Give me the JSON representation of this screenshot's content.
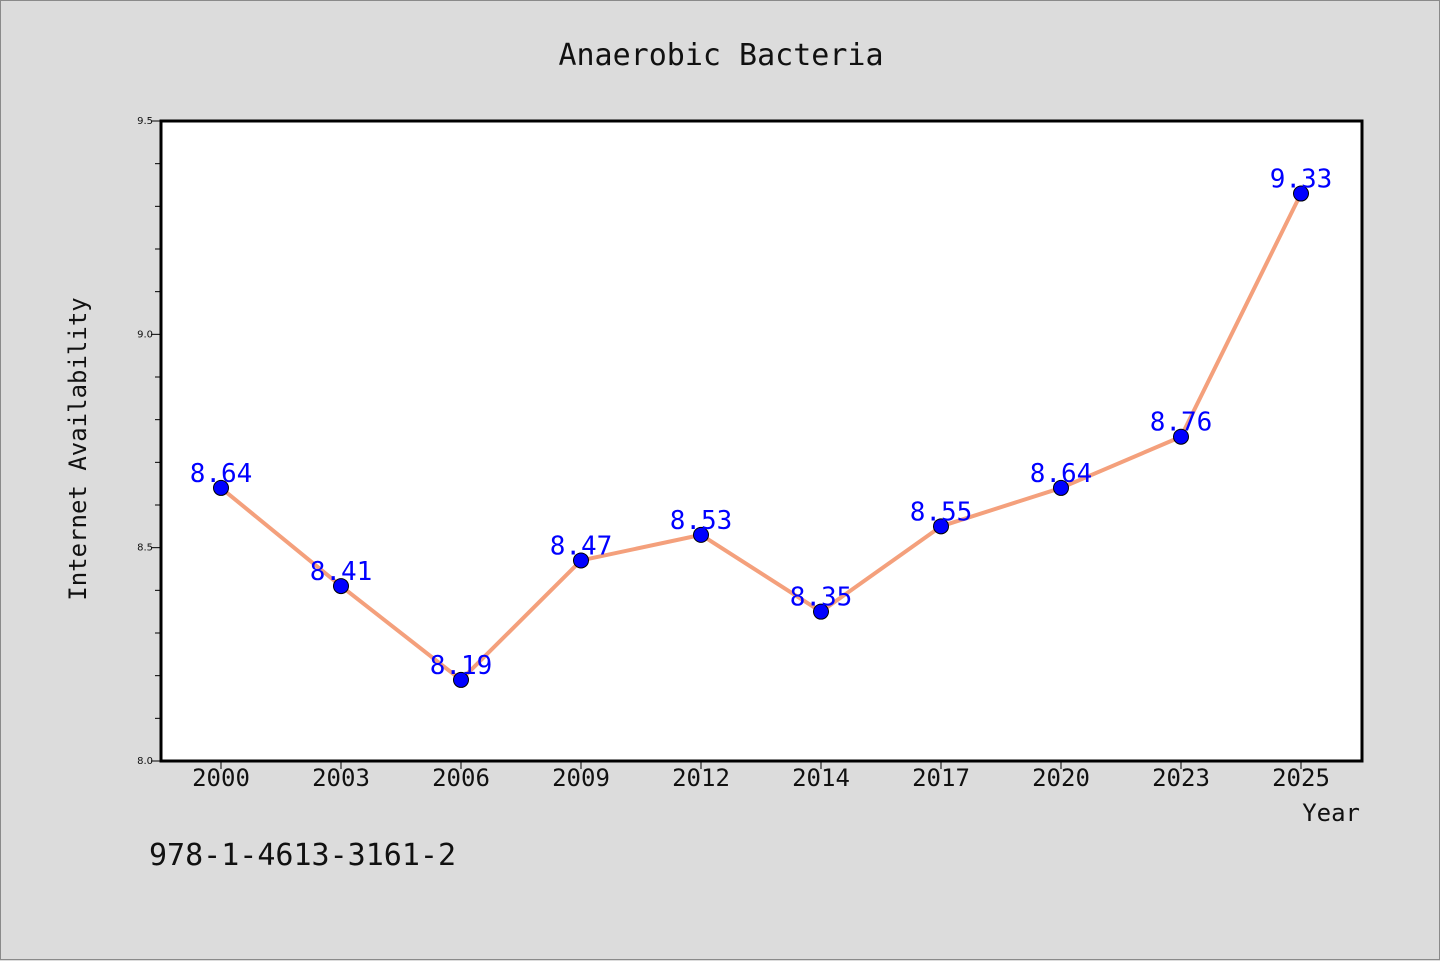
{
  "chart_data": {
    "type": "line",
    "title": "Anaerobic Bacteria",
    "xlabel": "Year",
    "ylabel": "Internet Availability",
    "categories": [
      "2000",
      "2003",
      "2006",
      "2009",
      "2012",
      "2014",
      "2017",
      "2020",
      "2023",
      "2025"
    ],
    "values": [
      8.64,
      8.41,
      8.19,
      8.47,
      8.53,
      8.35,
      8.55,
      8.64,
      8.76,
      9.33
    ],
    "data_labels": [
      "8.64",
      "8.41",
      "8.19",
      "8.47",
      "8.53",
      "8.35",
      "8.55",
      "8.64",
      "8.76",
      "9.33"
    ],
    "ylim": [
      8.0,
      9.5
    ],
    "yticks": [
      "8.0",
      "8.5",
      "9.0",
      "9.5"
    ],
    "grid": false,
    "legend": "none",
    "line_color": "#f4a07c",
    "marker_color": "#0000ff",
    "label_color": "#0000ff",
    "background": "#dcdcdc",
    "plot_background": "#ffffff"
  },
  "footer": {
    "isbn": "978-1-4613-3161-2"
  }
}
